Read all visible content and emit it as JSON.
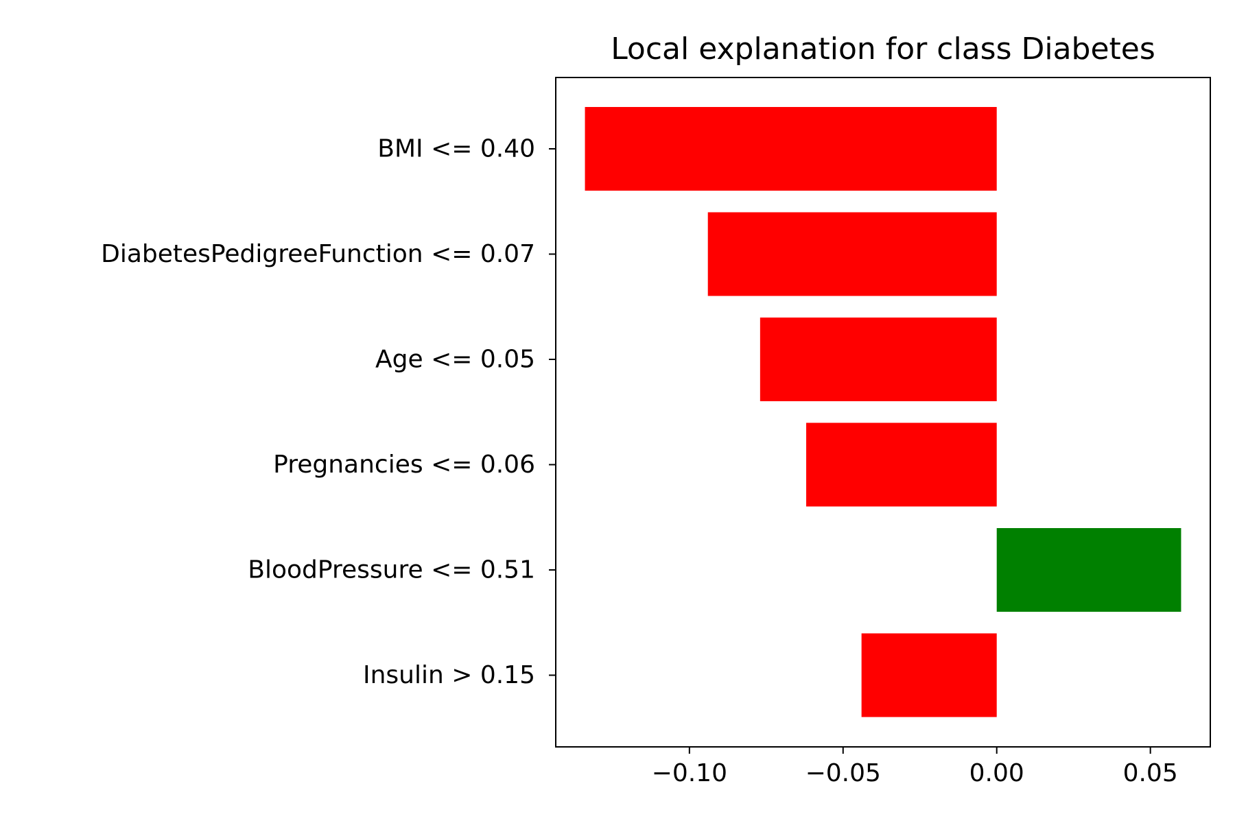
{
  "chart_data": {
    "type": "bar",
    "orientation": "horizontal",
    "title": "Local explanation for class Diabetes",
    "xlabel": "",
    "ylabel": "",
    "categories": [
      "BMI <= 0.40",
      "DiabetesPedigreeFunction <= 0.07",
      "Age <= 0.05",
      "Pregnancies <= 0.06",
      "BloodPressure <= 0.51",
      "Insulin > 0.15"
    ],
    "values": [
      -0.134,
      -0.094,
      -0.077,
      -0.062,
      0.06,
      -0.044
    ],
    "xlim": [
      -0.1435,
      0.0695
    ],
    "xticks": [
      -0.1,
      -0.05,
      0.0,
      0.05
    ],
    "xtick_labels": [
      "−0.10",
      "−0.05",
      "0.00",
      "0.05"
    ],
    "colors": {
      "positive": "#008000",
      "negative": "#ff0000"
    },
    "grid": false,
    "legend": "none"
  }
}
